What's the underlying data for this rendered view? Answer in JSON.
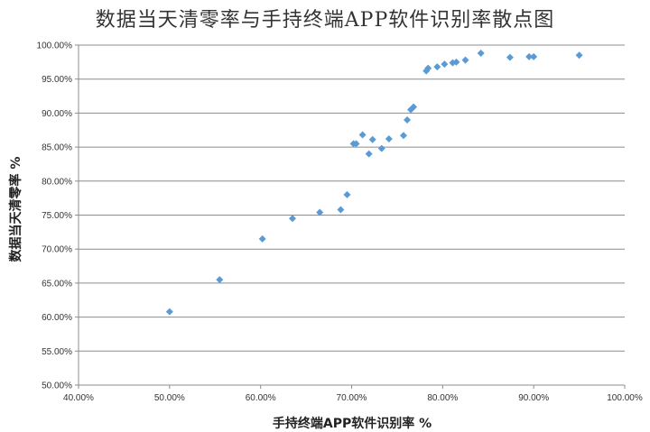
{
  "chart_data": {
    "type": "scatter",
    "title": "数据当天清零率与手持终端APP软件识别率散点图",
    "xlabel": "手持终端APP软件识别率       %",
    "ylabel": "数据当天清零率    %",
    "xlim": [
      0.4,
      1.0
    ],
    "ylim": [
      0.5,
      1.0
    ],
    "x_ticks": [
      0.4,
      0.5,
      0.6,
      0.7,
      0.8,
      0.9,
      1.0
    ],
    "x_tick_labels": [
      "40.00%",
      "50.00%",
      "60.00%",
      "70.00%",
      "80.00%",
      "90.00%",
      "100.00%"
    ],
    "y_ticks": [
      0.5,
      0.55,
      0.6,
      0.65,
      0.7,
      0.75,
      0.8,
      0.85,
      0.9,
      0.95,
      1.0
    ],
    "y_tick_labels": [
      "50.00%",
      "55.00%",
      "60.00%",
      "65.00%",
      "70.00%",
      "75.00%",
      "80.00%",
      "85.00%",
      "90.00%",
      "95.00%",
      "100.00%"
    ],
    "grid": "horizontal",
    "marker_color": "#5b9bd5",
    "points": [
      [
        0.5,
        0.608
      ],
      [
        0.555,
        0.655
      ],
      [
        0.602,
        0.715
      ],
      [
        0.635,
        0.745
      ],
      [
        0.665,
        0.754
      ],
      [
        0.688,
        0.758
      ],
      [
        0.695,
        0.78
      ],
      [
        0.702,
        0.855
      ],
      [
        0.705,
        0.855
      ],
      [
        0.712,
        0.868
      ],
      [
        0.719,
        0.84
      ],
      [
        0.723,
        0.861
      ],
      [
        0.733,
        0.848
      ],
      [
        0.741,
        0.862
      ],
      [
        0.757,
        0.867
      ],
      [
        0.761,
        0.89
      ],
      [
        0.765,
        0.905
      ],
      [
        0.768,
        0.909
      ],
      [
        0.782,
        0.962
      ],
      [
        0.784,
        0.966
      ],
      [
        0.794,
        0.968
      ],
      [
        0.802,
        0.972
      ],
      [
        0.811,
        0.974
      ],
      [
        0.815,
        0.975
      ],
      [
        0.825,
        0.978
      ],
      [
        0.842,
        0.988
      ],
      [
        0.874,
        0.982
      ],
      [
        0.895,
        0.983
      ],
      [
        0.9,
        0.983
      ],
      [
        0.95,
        0.985
      ]
    ]
  }
}
